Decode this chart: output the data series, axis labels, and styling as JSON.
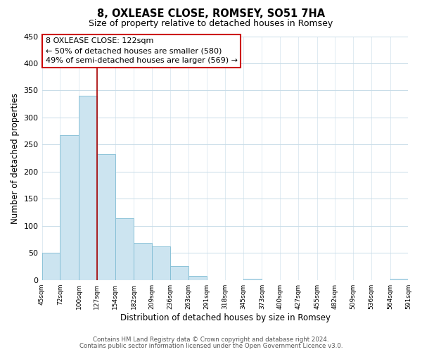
{
  "title": "8, OXLEASE CLOSE, ROMSEY, SO51 7HA",
  "subtitle": "Size of property relative to detached houses in Romsey",
  "xlabel": "Distribution of detached houses by size in Romsey",
  "ylabel": "Number of detached properties",
  "bar_edges": [
    45,
    72,
    100,
    127,
    154,
    182,
    209,
    236,
    263,
    291,
    318,
    345,
    373,
    400,
    427,
    455,
    482,
    509,
    536,
    564,
    591
  ],
  "bar_heights": [
    50,
    268,
    340,
    232,
    114,
    68,
    62,
    25,
    7,
    0,
    0,
    2,
    0,
    0,
    0,
    0,
    0,
    0,
    0,
    2
  ],
  "bar_color": "#cce4f0",
  "bar_edge_color": "#7fbcd4",
  "property_line_x": 127,
  "property_line_color": "#aa0000",
  "annotation_title": "8 OXLEASE CLOSE: 122sqm",
  "annotation_line1": "← 50% of detached houses are smaller (580)",
  "annotation_line2": "49% of semi-detached houses are larger (569) →",
  "annotation_box_color": "#ffffff",
  "annotation_box_edge_color": "#cc0000",
  "ylim": [
    0,
    450
  ],
  "yticks": [
    0,
    50,
    100,
    150,
    200,
    250,
    300,
    350,
    400,
    450
  ],
  "tick_labels": [
    "45sqm",
    "72sqm",
    "100sqm",
    "127sqm",
    "154sqm",
    "182sqm",
    "209sqm",
    "236sqm",
    "263sqm",
    "291sqm",
    "318sqm",
    "345sqm",
    "373sqm",
    "400sqm",
    "427sqm",
    "455sqm",
    "482sqm",
    "509sqm",
    "536sqm",
    "564sqm",
    "591sqm"
  ],
  "footnote1": "Contains HM Land Registry data © Crown copyright and database right 2024.",
  "footnote2": "Contains public sector information licensed under the Open Government Licence v3.0.",
  "bg_color": "#ffffff",
  "grid_color": "#c8dce8"
}
